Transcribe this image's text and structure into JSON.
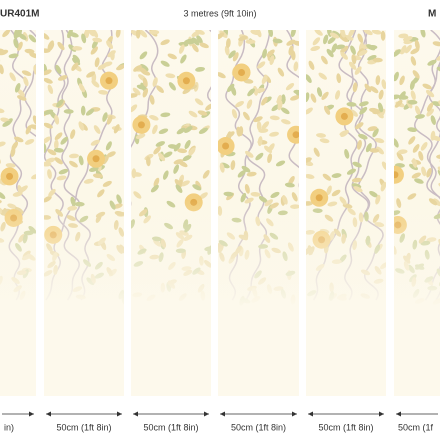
{
  "header": {
    "left_code": "UR401M",
    "width_label": "3 metres (9ft 10in)",
    "right_code": "M"
  },
  "panels": [
    {
      "label": "in)"
    },
    {
      "label": "50cm (1ft 8in)"
    },
    {
      "label": "50cm (1ft 8in)"
    },
    {
      "label": "50cm (1ft 8in)"
    },
    {
      "label": "50cm (1ft 8in)"
    },
    {
      "label": "50cm (1f"
    }
  ]
}
